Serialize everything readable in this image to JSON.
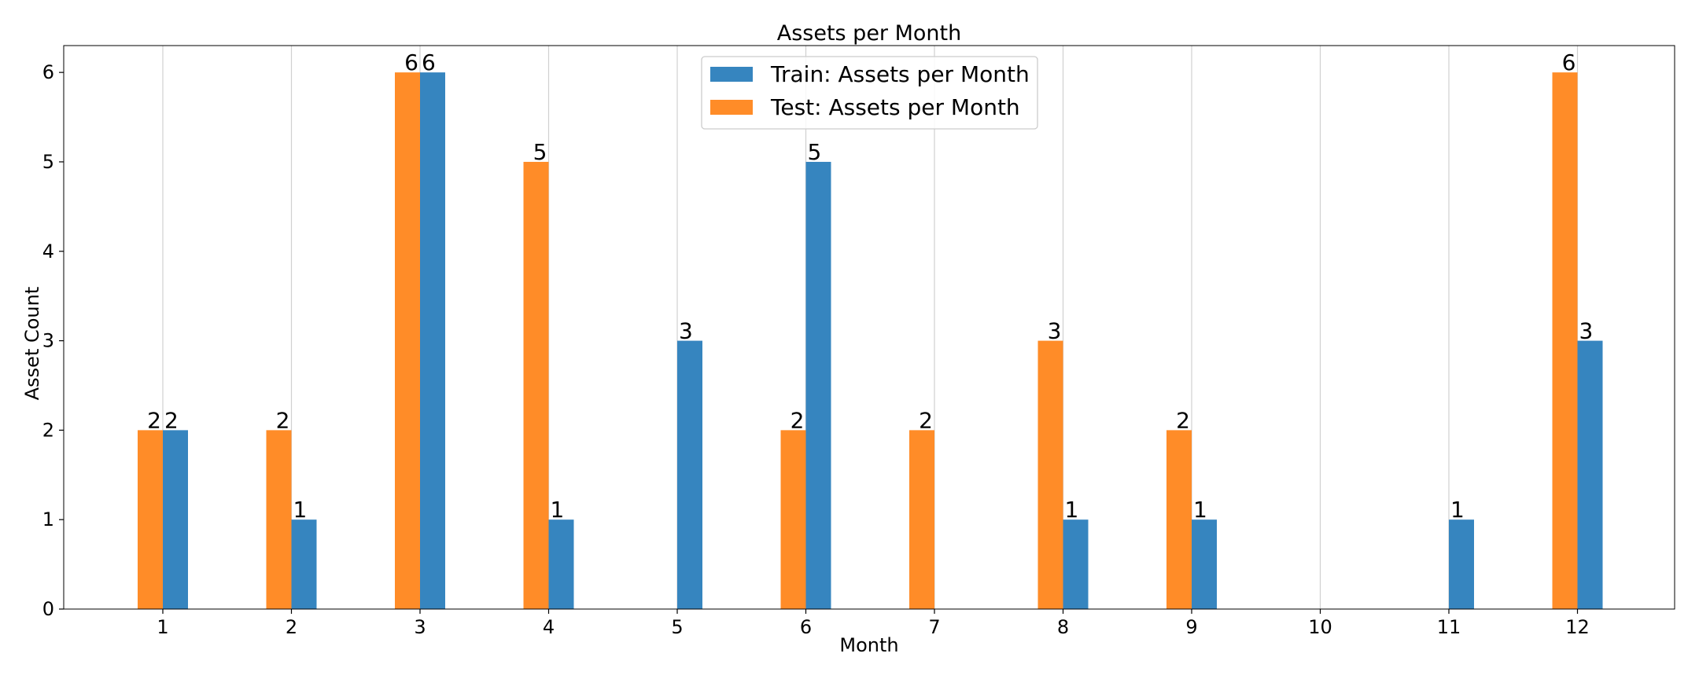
{
  "chart_data": {
    "type": "bar",
    "title": "Assets per Month",
    "xlabel": "Month",
    "ylabel": "Asset Count",
    "categories": [
      "1",
      "2",
      "3",
      "4",
      "5",
      "6",
      "7",
      "8",
      "9",
      "10",
      "11",
      "12"
    ],
    "yticks": [
      "0",
      "1",
      "2",
      "3",
      "4",
      "5",
      "6"
    ],
    "ylim": [
      0,
      6.3
    ],
    "grid": "vertical",
    "legend_position": "top-center",
    "series": [
      {
        "name": "Train: Assets per Month",
        "color": "#3685bf",
        "offset": "right",
        "values": [
          2,
          1,
          6,
          1,
          3,
          5,
          0,
          1,
          1,
          0,
          1,
          3
        ],
        "labels": [
          "2",
          "1",
          "6",
          "1",
          "3",
          "5",
          "",
          "1",
          "1",
          "",
          "1",
          "3"
        ]
      },
      {
        "name": "Test: Assets per Month",
        "color": "#ff8c28",
        "offset": "left",
        "values": [
          2,
          2,
          6,
          5,
          0,
          2,
          2,
          3,
          2,
          0,
          0,
          6
        ],
        "labels": [
          "2",
          "2",
          "6",
          "5",
          "",
          "2",
          "2",
          "3",
          "2",
          "",
          "",
          "6"
        ]
      }
    ]
  }
}
